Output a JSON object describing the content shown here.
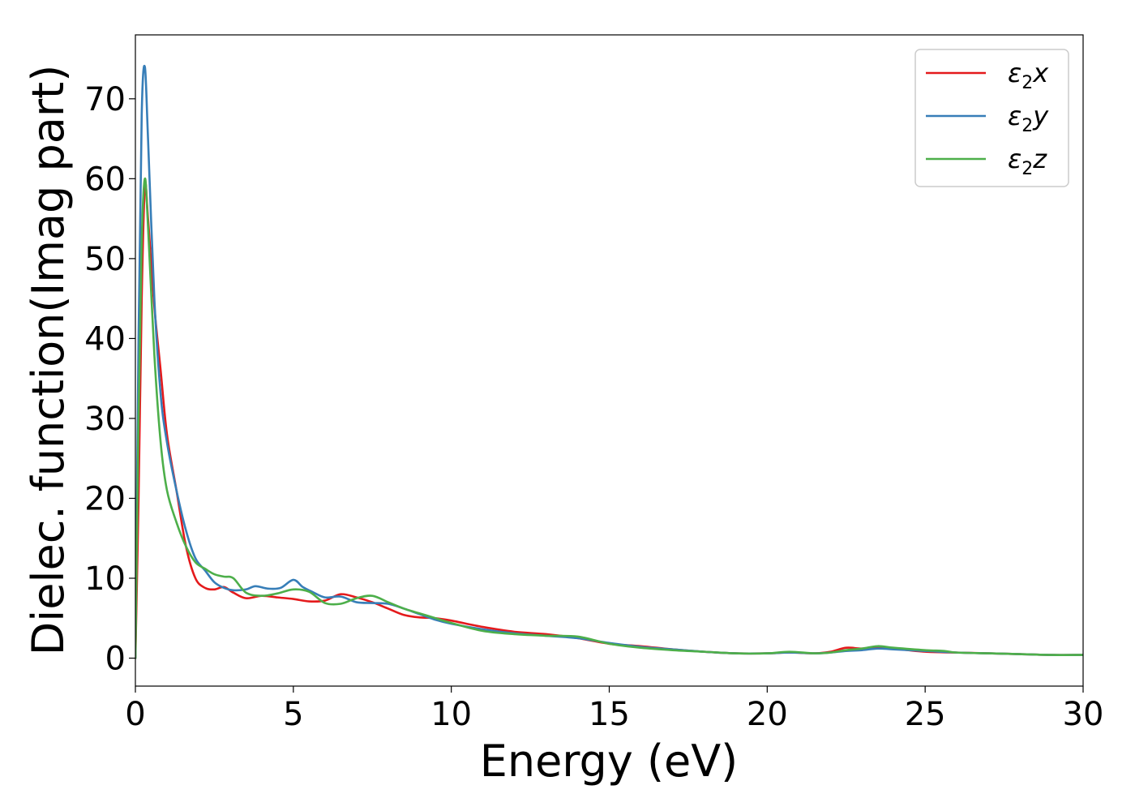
{
  "chart_data": {
    "type": "line",
    "title": "",
    "xlabel": "Energy (eV)",
    "ylabel": "Dielec. function(Imag part)",
    "xlim": [
      0,
      30
    ],
    "ylim": [
      -3.5,
      78
    ],
    "xticks": [
      0,
      5,
      10,
      15,
      20,
      25,
      30
    ],
    "yticks": [
      0,
      10,
      20,
      30,
      40,
      50,
      60,
      70
    ],
    "grid": false,
    "legend_position": "top-right",
    "series": [
      {
        "name": "ε2x",
        "legend_base": "ε",
        "legend_sub": "2",
        "legend_tail": "x",
        "color": "#e41a1c",
        "x": [
          0,
          0.1,
          0.2,
          0.3,
          0.4,
          0.6,
          0.8,
          1.0,
          1.3,
          1.6,
          1.9,
          2.2,
          2.5,
          2.8,
          3.1,
          3.5,
          4.0,
          4.5,
          5.0,
          5.5,
          6.0,
          6.5,
          7.0,
          7.5,
          8.0,
          8.5,
          9.0,
          9.5,
          10.0,
          11.0,
          12.0,
          13.0,
          14.0,
          15.0,
          16.0,
          17.0,
          18.0,
          19.0,
          20.0,
          20.7,
          21.5,
          22.0,
          22.5,
          23.0,
          23.5,
          24.0,
          25.0,
          26.0,
          27.0,
          28.0,
          29.0,
          30.0
        ],
        "y": [
          0,
          20,
          45,
          59,
          55,
          44,
          36,
          28,
          21,
          14,
          10,
          8.8,
          8.6,
          8.9,
          8.2,
          7.5,
          7.8,
          7.6,
          7.4,
          7.1,
          7.2,
          8.0,
          7.6,
          7.0,
          6.2,
          5.4,
          5.1,
          5.0,
          4.7,
          3.9,
          3.3,
          3.0,
          2.5,
          1.8,
          1.5,
          1.1,
          0.8,
          0.6,
          0.6,
          0.7,
          0.6,
          0.8,
          1.3,
          1.2,
          1.4,
          1.2,
          0.8,
          0.7,
          0.6,
          0.5,
          0.4,
          0.4
        ]
      },
      {
        "name": "ε2y",
        "legend_base": "ε",
        "legend_sub": "2",
        "legend_tail": "y",
        "color": "#377eb8",
        "x": [
          0,
          0.1,
          0.2,
          0.3,
          0.4,
          0.6,
          0.8,
          1.0,
          1.3,
          1.6,
          1.9,
          2.2,
          2.5,
          2.8,
          3.1,
          3.5,
          3.8,
          4.2,
          4.6,
          5.0,
          5.3,
          5.6,
          6.0,
          6.5,
          7.0,
          7.5,
          8.0,
          8.5,
          9.0,
          9.5,
          10.0,
          11.0,
          12.0,
          13.0,
          14.0,
          15.0,
          16.0,
          17.0,
          18.0,
          19.0,
          20.0,
          20.7,
          21.5,
          22.0,
          22.5,
          23.0,
          23.5,
          24.0,
          25.0,
          26.0,
          27.0,
          28.0,
          29.0,
          30.0
        ],
        "y": [
          0,
          40,
          68,
          74,
          65,
          45,
          33,
          27,
          21,
          16,
          12.5,
          11,
          9.5,
          8.8,
          8.5,
          8.6,
          9.0,
          8.7,
          8.8,
          9.8,
          8.9,
          8.3,
          7.6,
          7.7,
          7.0,
          6.9,
          6.8,
          6.2,
          5.5,
          4.8,
          4.3,
          3.6,
          3.1,
          2.8,
          2.5,
          1.9,
          1.4,
          1.1,
          0.8,
          0.6,
          0.6,
          0.7,
          0.6,
          0.7,
          0.9,
          1.0,
          1.2,
          1.1,
          0.9,
          0.7,
          0.6,
          0.5,
          0.4,
          0.4
        ]
      },
      {
        "name": "ε2z",
        "legend_base": "ε",
        "legend_sub": "2",
        "legend_tail": "z",
        "color": "#4daf4a",
        "x": [
          0,
          0.1,
          0.2,
          0.3,
          0.4,
          0.6,
          0.8,
          1.0,
          1.3,
          1.6,
          1.9,
          2.2,
          2.5,
          2.8,
          3.1,
          3.5,
          4.0,
          4.5,
          5.0,
          5.5,
          6.0,
          6.5,
          7.0,
          7.5,
          8.0,
          8.5,
          9.0,
          9.5,
          10.0,
          11.0,
          12.0,
          13.0,
          14.0,
          15.0,
          16.0,
          17.0,
          18.0,
          19.0,
          20.0,
          20.7,
          21.5,
          22.0,
          22.5,
          23.0,
          23.5,
          24.0,
          25.0,
          25.6,
          26.0,
          27.0,
          28.0,
          29.0,
          30.0
        ],
        "y": [
          0,
          30,
          52,
          60,
          54,
          38,
          27,
          21,
          17,
          14,
          12,
          11.2,
          10.5,
          10.2,
          10.0,
          8.2,
          7.8,
          8.1,
          8.6,
          8.3,
          6.9,
          6.8,
          7.5,
          7.8,
          7.0,
          6.2,
          5.6,
          5.0,
          4.4,
          3.4,
          3.0,
          2.8,
          2.7,
          1.8,
          1.3,
          1.0,
          0.8,
          0.6,
          0.6,
          0.8,
          0.6,
          0.7,
          1.0,
          1.2,
          1.5,
          1.3,
          1.0,
          0.9,
          0.7,
          0.6,
          0.5,
          0.4,
          0.4
        ]
      }
    ]
  }
}
